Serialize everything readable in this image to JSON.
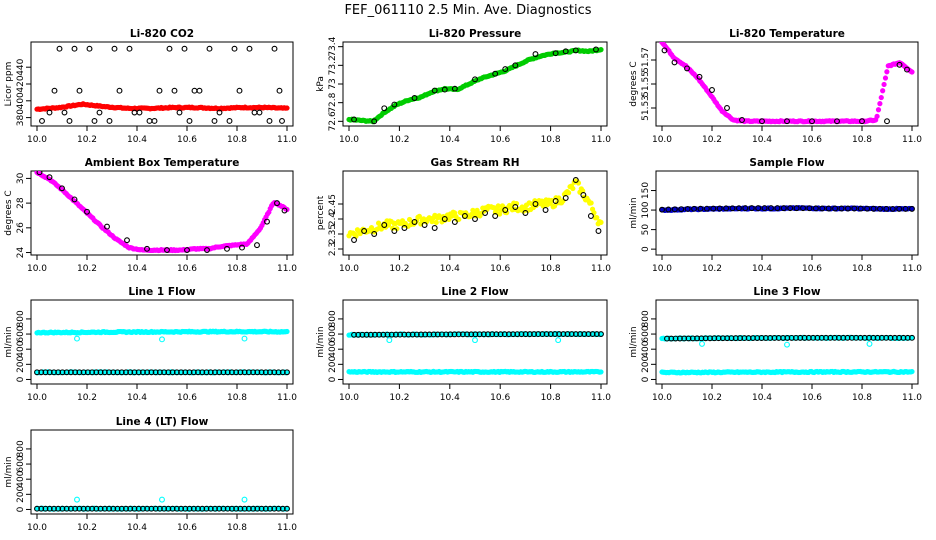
{
  "figure_title": "FEF_061110  2.5 Min. Ave. Diagnostics",
  "colors": {
    "black": "#000000",
    "red": "#ff0000",
    "green": "#00cc00",
    "magenta": "#ff00ff",
    "yellow": "#ffff00",
    "blue": "#0000cc",
    "cyan": "#00ffff"
  },
  "chart_data": [
    {
      "type": "scatter",
      "title": "Li-820 CO2",
      "ylabel": "Licor ppm",
      "xlim": [
        10.0,
        11.0
      ],
      "ylim": [
        370,
        470
      ],
      "xticks": [
        "10.0",
        "10.2",
        "10.4",
        "10.6",
        "10.8",
        "11.0"
      ],
      "yticks": [
        380,
        400,
        420,
        440
      ],
      "series": [
        {
          "name": "red",
          "color": "red",
          "style": "dense",
          "x_start": 10.0,
          "x_end": 11.0,
          "y": [
            390,
            392,
            396,
            393,
            391,
            391,
            392,
            392,
            391,
            392,
            392,
            391
          ]
        },
        {
          "name": "black",
          "color": "black",
          "style": "circle",
          "x": [
            10.02,
            10.05,
            10.09,
            10.13,
            10.17,
            10.21,
            10.25,
            10.29,
            10.33,
            10.37,
            10.41,
            10.45,
            10.49,
            10.53,
            10.57,
            10.61,
            10.65,
            10.69,
            10.73,
            10.77,
            10.81,
            10.85,
            10.89,
            10.93,
            10.97,
            10.07,
            10.15,
            10.23,
            10.31,
            10.39,
            10.47,
            10.55,
            10.63,
            10.71,
            10.79,
            10.87,
            10.95,
            10.98,
            10.11,
            10.59
          ],
          "y": [
            376,
            386,
            462,
            376,
            412,
            462,
            386,
            376,
            412,
            462,
            386,
            376,
            412,
            462,
            386,
            376,
            412,
            462,
            386,
            376,
            412,
            462,
            386,
            376,
            412,
            412,
            462,
            376,
            462,
            386,
            376,
            412,
            412,
            376,
            462,
            386,
            462,
            376,
            386,
            462
          ]
        }
      ]
    },
    {
      "type": "scatter",
      "title": "Li-820 Pressure",
      "ylabel": "kPa",
      "xlim": [
        10.0,
        11.0
      ],
      "ylim": [
        72.55,
        73.45
      ],
      "xticks": [
        "10.0",
        "10.2",
        "10.4",
        "10.6",
        "10.8",
        "11.0"
      ],
      "yticks": [
        72.6,
        72.8,
        73.0,
        73.2,
        73.4
      ],
      "series": [
        {
          "name": "green",
          "color": "green",
          "style": "dense",
          "x_start": 10.0,
          "x_end": 11.0,
          "y": [
            72.62,
            72.61,
            72.6,
            72.7,
            72.78,
            72.83,
            72.86,
            72.92,
            72.95,
            72.94,
            73.0,
            73.06,
            73.1,
            73.14,
            73.2,
            73.26,
            73.3,
            73.33,
            73.34,
            73.36,
            73.35,
            73.37
          ]
        },
        {
          "name": "black",
          "color": "black",
          "style": "circle",
          "x": [
            10.02,
            10.1,
            10.18,
            10.26,
            10.34,
            10.42,
            10.5,
            10.58,
            10.66,
            10.74,
            10.82,
            10.9,
            10.98,
            10.14,
            10.38,
            10.62,
            10.86
          ],
          "y": [
            72.62,
            72.6,
            72.78,
            72.85,
            72.93,
            72.95,
            73.05,
            73.11,
            73.2,
            73.32,
            73.33,
            73.36,
            73.37,
            72.74,
            72.94,
            73.16,
            73.35
          ]
        }
      ]
    },
    {
      "type": "scatter",
      "title": "Li-820 Temperature",
      "ylabel": "degrees C",
      "xlim": [
        10.0,
        11.0
      ],
      "ylim": [
        51.515,
        51.585
      ],
      "xticks": [
        "10.0",
        "10.2",
        "10.4",
        "10.6",
        "10.8",
        "11.0"
      ],
      "yticks": [
        51.53,
        51.55,
        51.57
      ],
      "series": [
        {
          "name": "magenta",
          "color": "magenta",
          "style": "dense",
          "x_start": 10.0,
          "x_end": 11.0,
          "y": [
            51.585,
            51.572,
            51.565,
            51.555,
            51.542,
            51.528,
            51.52,
            51.519,
            51.519,
            51.519,
            51.519,
            51.519,
            51.519,
            51.519,
            51.519,
            51.519,
            51.519,
            51.519,
            51.52,
            51.565,
            51.568,
            51.56
          ]
        },
        {
          "name": "black",
          "color": "black",
          "style": "circle",
          "x": [
            10.01,
            10.05,
            10.1,
            10.15,
            10.2,
            10.26,
            10.32,
            10.4,
            10.5,
            10.6,
            10.7,
            10.8,
            10.9,
            10.95,
            10.98
          ],
          "y": [
            51.578,
            51.568,
            51.563,
            51.556,
            51.545,
            51.53,
            51.52,
            51.519,
            51.519,
            51.519,
            51.519,
            51.519,
            51.519,
            51.566,
            51.562
          ]
        }
      ]
    },
    {
      "type": "scatter",
      "title": "Ambient Box Temperature",
      "ylabel": "degrees C",
      "xlim": [
        10.0,
        11.0
      ],
      "ylim": [
        23.8,
        30.6
      ],
      "xticks": [
        "10.0",
        "10.2",
        "10.4",
        "10.6",
        "10.8",
        "11.0"
      ],
      "yticks": [
        24,
        26,
        28,
        30
      ],
      "series": [
        {
          "name": "magenta",
          "color": "magenta",
          "style": "dense",
          "x_start": 10.0,
          "x_end": 11.0,
          "y": [
            30.5,
            29.9,
            29.0,
            28.0,
            27.0,
            26.0,
            25.1,
            24.4,
            24.2,
            24.2,
            24.2,
            24.2,
            24.3,
            24.3,
            24.5,
            24.6,
            24.7,
            26.0,
            28.1,
            27.5
          ]
        },
        {
          "name": "black",
          "color": "black",
          "style": "circle",
          "x": [
            10.01,
            10.05,
            10.1,
            10.15,
            10.2,
            10.28,
            10.36,
            10.44,
            10.52,
            10.6,
            10.68,
            10.76,
            10.82,
            10.88,
            10.92,
            10.96,
            10.99
          ],
          "y": [
            30.5,
            30.1,
            29.2,
            28.3,
            27.3,
            26.1,
            25.0,
            24.3,
            24.2,
            24.2,
            24.2,
            24.3,
            24.4,
            24.6,
            26.5,
            28.0,
            27.4
          ]
        }
      ]
    },
    {
      "type": "scatter",
      "title": "Gas Stream RH",
      "ylabel": "percent",
      "xlim": [
        10.0,
        11.0
      ],
      "ylim": [
        2.28,
        2.56
      ],
      "xticks": [
        "10.0",
        "10.2",
        "10.4",
        "10.6",
        "10.8",
        "11.0"
      ],
      "yticks": [
        2.3,
        2.35,
        2.4,
        2.45
      ],
      "series": [
        {
          "name": "yellow",
          "color": "yellow",
          "style": "dense",
          "jitter": true,
          "x_start": 10.0,
          "x_end": 11.0,
          "y": [
            2.35,
            2.36,
            2.37,
            2.38,
            2.38,
            2.39,
            2.4,
            2.4,
            2.41,
            2.41,
            2.42,
            2.43,
            2.43,
            2.44,
            2.44,
            2.45,
            2.45,
            2.47,
            2.52,
            2.46,
            2.38
          ]
        },
        {
          "name": "black",
          "color": "black",
          "style": "circle",
          "x": [
            10.02,
            10.06,
            10.1,
            10.14,
            10.18,
            10.22,
            10.26,
            10.3,
            10.34,
            10.38,
            10.42,
            10.46,
            10.5,
            10.54,
            10.58,
            10.62,
            10.66,
            10.7,
            10.74,
            10.78,
            10.82,
            10.86,
            10.9,
            10.93,
            10.96,
            10.99
          ],
          "y": [
            2.33,
            2.36,
            2.35,
            2.38,
            2.36,
            2.37,
            2.39,
            2.38,
            2.37,
            2.4,
            2.39,
            2.41,
            2.4,
            2.42,
            2.41,
            2.43,
            2.44,
            2.42,
            2.45,
            2.43,
            2.46,
            2.47,
            2.53,
            2.48,
            2.41,
            2.36
          ]
        }
      ]
    },
    {
      "type": "scatter",
      "title": "Sample Flow",
      "ylabel": "ml/min",
      "xlim": [
        10.0,
        11.0
      ],
      "ylim": [
        -15,
        200
      ],
      "xticks": [
        "10.0",
        "10.2",
        "10.4",
        "10.6",
        "10.8",
        "11.0"
      ],
      "yticks": [
        0,
        50,
        100,
        150
      ],
      "series": [
        {
          "name": "blue",
          "color": "blue",
          "style": "dense",
          "x_start": 10.0,
          "x_end": 11.0,
          "y": [
            100,
            102,
            103,
            104,
            104,
            105,
            104,
            104,
            103,
            103
          ]
        },
        {
          "name": "black",
          "color": "black",
          "style": "circle",
          "x_start": 10.0,
          "x_end": 11.0,
          "count": 40,
          "y": [
            101,
            103,
            104,
            105,
            105,
            105,
            104,
            104,
            103,
            103
          ]
        }
      ]
    },
    {
      "type": "scatter",
      "title": "Line 1 Flow",
      "ylabel": "ml/min",
      "xlim": [
        10.0,
        11.0
      ],
      "ylim": [
        -60,
        1050
      ],
      "xticks": [
        "10.0",
        "10.2",
        "10.4",
        "10.6",
        "10.8",
        "11.0"
      ],
      "yticks": [
        0,
        200,
        400,
        600,
        800
      ],
      "series": [
        {
          "name": "cyan",
          "color": "cyan",
          "style": "dense",
          "x_start": 10.0,
          "x_end": 11.0,
          "y": [
            620,
            622,
            626,
            628,
            630,
            632,
            632,
            630
          ]
        },
        {
          "name": "cyan-low",
          "color": "cyan",
          "style": "dense",
          "x_start": 10.0,
          "x_end": 11.0,
          "y": [
            95,
            95,
            95,
            95
          ]
        },
        {
          "name": "black",
          "color": "black",
          "style": "circle",
          "x_start": 10.0,
          "x_end": 11.0,
          "count": 60,
          "y": [
            95,
            95,
            95,
            95
          ]
        },
        {
          "name": "cyan-outliers",
          "color": "cyan",
          "style": "circle",
          "x": [
            10.16,
            10.5,
            10.83
          ],
          "y": [
            540,
            530,
            540
          ]
        }
      ]
    },
    {
      "type": "scatter",
      "title": "Line 2 Flow",
      "ylabel": "ml/min",
      "xlim": [
        10.0,
        11.0
      ],
      "ylim": [
        -60,
        1050
      ],
      "xticks": [
        "10.0",
        "10.2",
        "10.4",
        "10.6",
        "10.8",
        "11.0"
      ],
      "yticks": [
        0,
        200,
        400,
        600,
        800
      ],
      "series": [
        {
          "name": "cyan-low",
          "color": "cyan",
          "style": "dense",
          "x_start": 10.0,
          "x_end": 11.0,
          "y": [
            100,
            100,
            100,
            100
          ]
        },
        {
          "name": "cyan",
          "color": "cyan",
          "style": "dense",
          "x_start": 10.0,
          "x_end": 11.0,
          "y": [
            592,
            594,
            596,
            598,
            600,
            600
          ]
        },
        {
          "name": "black",
          "color": "black",
          "style": "circle",
          "x_start": 10.02,
          "x_end": 11.0,
          "count": 60,
          "y": [
            590,
            593,
            596,
            598,
            600,
            600
          ]
        },
        {
          "name": "cyan-outliers",
          "color": "cyan",
          "style": "circle",
          "x": [
            10.16,
            10.5,
            10.83
          ],
          "y": [
            520,
            520,
            520
          ]
        }
      ]
    },
    {
      "type": "scatter",
      "title": "Line 3 Flow",
      "ylabel": "ml/min",
      "xlim": [
        10.0,
        11.0
      ],
      "ylim": [
        -60,
        1050
      ],
      "xticks": [
        "10.0",
        "10.2",
        "10.4",
        "10.6",
        "10.8",
        "11.0"
      ],
      "yticks": [
        0,
        200,
        400,
        600,
        800
      ],
      "series": [
        {
          "name": "cyan-low",
          "color": "cyan",
          "style": "dense",
          "x_start": 10.0,
          "x_end": 11.0,
          "y": [
            92,
            95,
            98,
            100,
            100
          ]
        },
        {
          "name": "cyan",
          "color": "cyan",
          "style": "dense",
          "x_start": 10.0,
          "x_end": 11.0,
          "y": [
            540,
            545,
            548,
            550,
            550,
            548
          ]
        },
        {
          "name": "black",
          "color": "black",
          "style": "circle",
          "x_start": 10.02,
          "x_end": 11.0,
          "count": 58,
          "y": [
            540,
            545,
            548,
            550,
            550,
            550
          ]
        },
        {
          "name": "cyan-outliers",
          "color": "cyan",
          "style": "circle",
          "x": [
            10.16,
            10.5,
            10.83
          ],
          "y": [
            470,
            460,
            470
          ]
        }
      ]
    },
    {
      "type": "scatter",
      "title": "Line 4 (LT) Flow",
      "ylabel": "ml/min",
      "xlim": [
        10.0,
        11.0
      ],
      "ylim": [
        -60,
        1050
      ],
      "xticks": [
        "10.0",
        "10.2",
        "10.4",
        "10.6",
        "10.8",
        "11.0"
      ],
      "yticks": [
        0,
        200,
        400,
        600,
        800
      ],
      "series": [
        {
          "name": "cyan",
          "color": "cyan",
          "style": "dense",
          "x_start": 10.0,
          "x_end": 11.0,
          "y": [
            10,
            10,
            10,
            10
          ]
        },
        {
          "name": "black",
          "color": "black",
          "style": "circle",
          "x_start": 10.0,
          "x_end": 11.0,
          "count": 60,
          "y": [
            10,
            10,
            10,
            10
          ]
        },
        {
          "name": "cyan-outliers",
          "color": "cyan",
          "style": "circle",
          "x": [
            10.16,
            10.5,
            10.83
          ],
          "y": [
            130,
            130,
            130
          ]
        }
      ]
    }
  ]
}
